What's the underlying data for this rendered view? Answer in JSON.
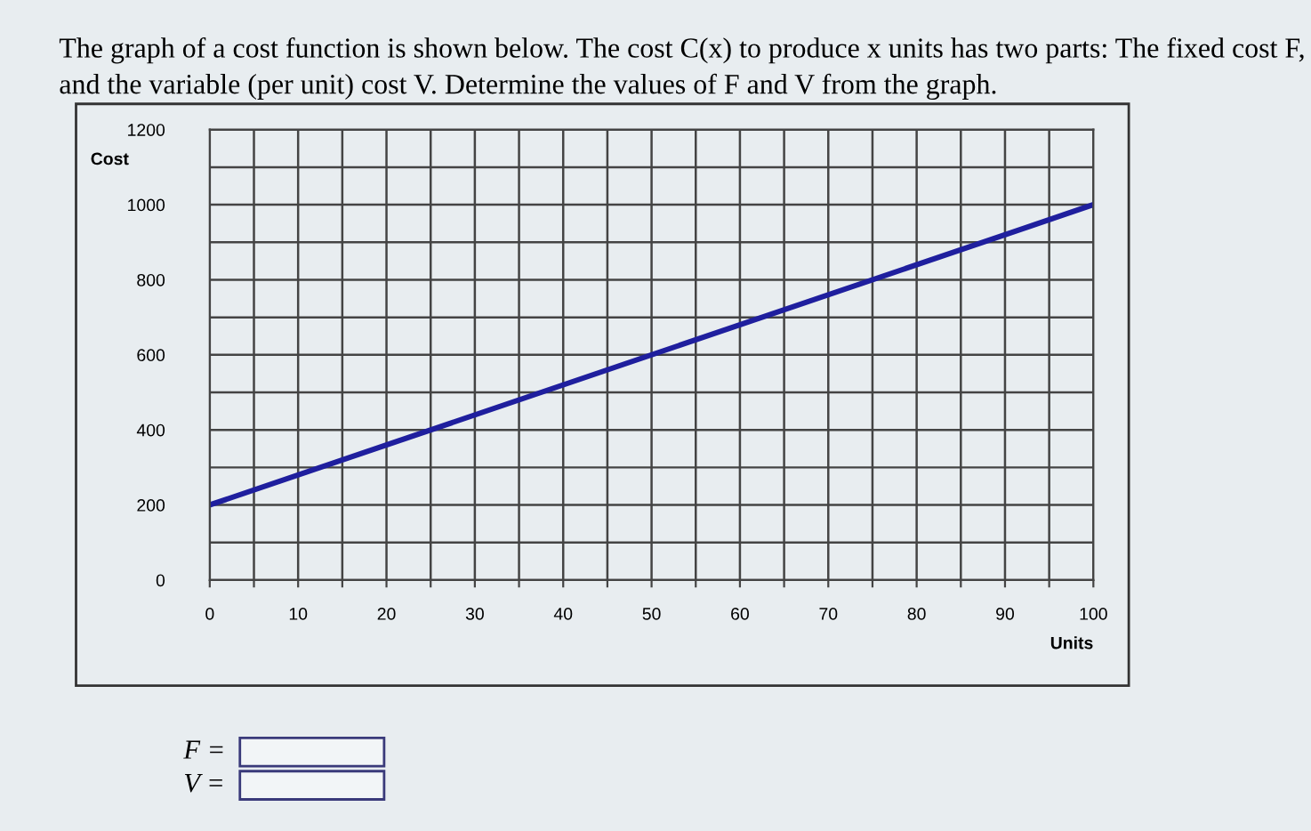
{
  "chart_data": {
    "type": "line",
    "title": "The graph of a cost function is shown below. The cost C(x) to produce x units has two parts: The fixed cost F, and the variable (per unit) cost V. Determine the values of F and V from the graph.",
    "xlabel": "Units",
    "ylabel": "Cost",
    "x": [
      0,
      100
    ],
    "series": [
      {
        "color": "#1f1f9e",
        "values": [
          200,
          1000
        ]
      }
    ],
    "xlim": [
      0,
      100
    ],
    "ylim": [
      0,
      1200
    ],
    "xticks": [
      0,
      {
        "value": 5,
        "label": null
      },
      10,
      {
        "value": 15,
        "label": null
      },
      20,
      {
        "value": 25,
        "label": null
      },
      30,
      {
        "value": 35,
        "label": null
      },
      40,
      {
        "value": 45,
        "label": null
      },
      50,
      {
        "value": 55,
        "label": null
      },
      60,
      {
        "value": 65,
        "label": null
      },
      70,
      {
        "value": 75,
        "label": null
      },
      80,
      {
        "value": 85,
        "label": null
      },
      90,
      {
        "value": 95,
        "label": null
      },
      100
    ],
    "yticks": [
      0,
      {
        "value": 100,
        "label": null
      },
      200,
      {
        "value": 300,
        "label": null
      },
      400,
      {
        "value": 500,
        "label": null
      },
      600,
      {
        "value": 700,
        "label": null
      },
      800,
      {
        "value": 900,
        "label": null
      },
      1000,
      {
        "value": 1100,
        "label": null
      },
      1200
    ],
    "grid": true,
    "line_style": "solid",
    "marker": "none",
    "annotations": [
      "F =",
      "V ="
    ]
  }
}
